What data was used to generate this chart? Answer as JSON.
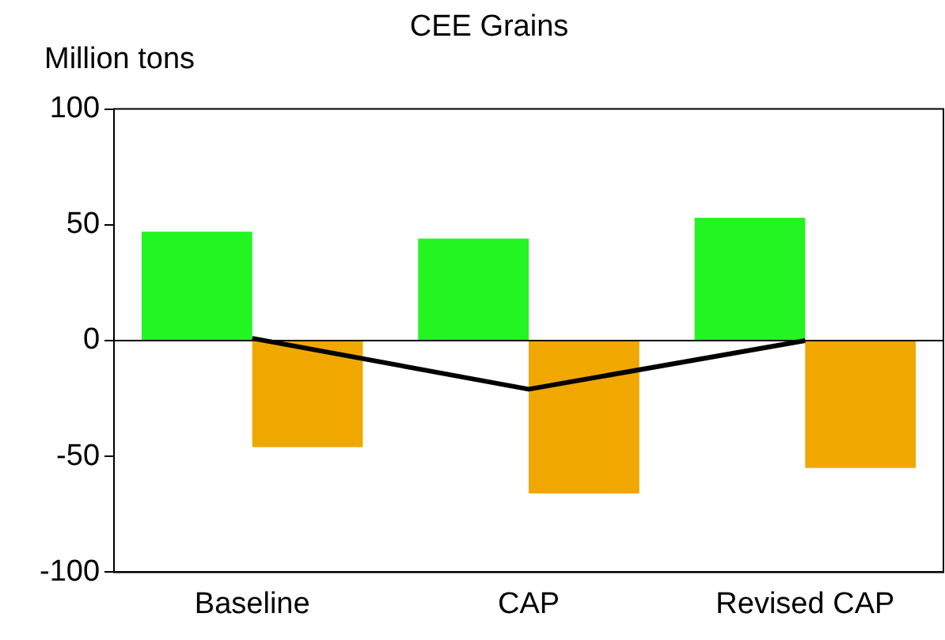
{
  "chart_data": {
    "type": "bar",
    "title": "CEE Grains",
    "ylabel": "Million tons",
    "categories": [
      "Baseline",
      "CAP",
      "Revised CAP"
    ],
    "series": [
      {
        "color": "#22f522",
        "values": [
          47,
          44,
          53
        ]
      },
      {
        "color": "#f0a800",
        "values": [
          -46,
          -66,
          -55
        ]
      },
      {
        "type": "line",
        "color": "#000000",
        "values": [
          1,
          -21,
          0
        ]
      }
    ],
    "ylim": [
      -100,
      100
    ],
    "yticks": [
      -100,
      -50,
      0,
      50,
      100
    ],
    "grid": false,
    "legend": false,
    "marker": "none",
    "line_style": "solid",
    "ref_lines": [
      {
        "axis": "y",
        "value": 0,
        "color": "#000000"
      }
    ]
  }
}
